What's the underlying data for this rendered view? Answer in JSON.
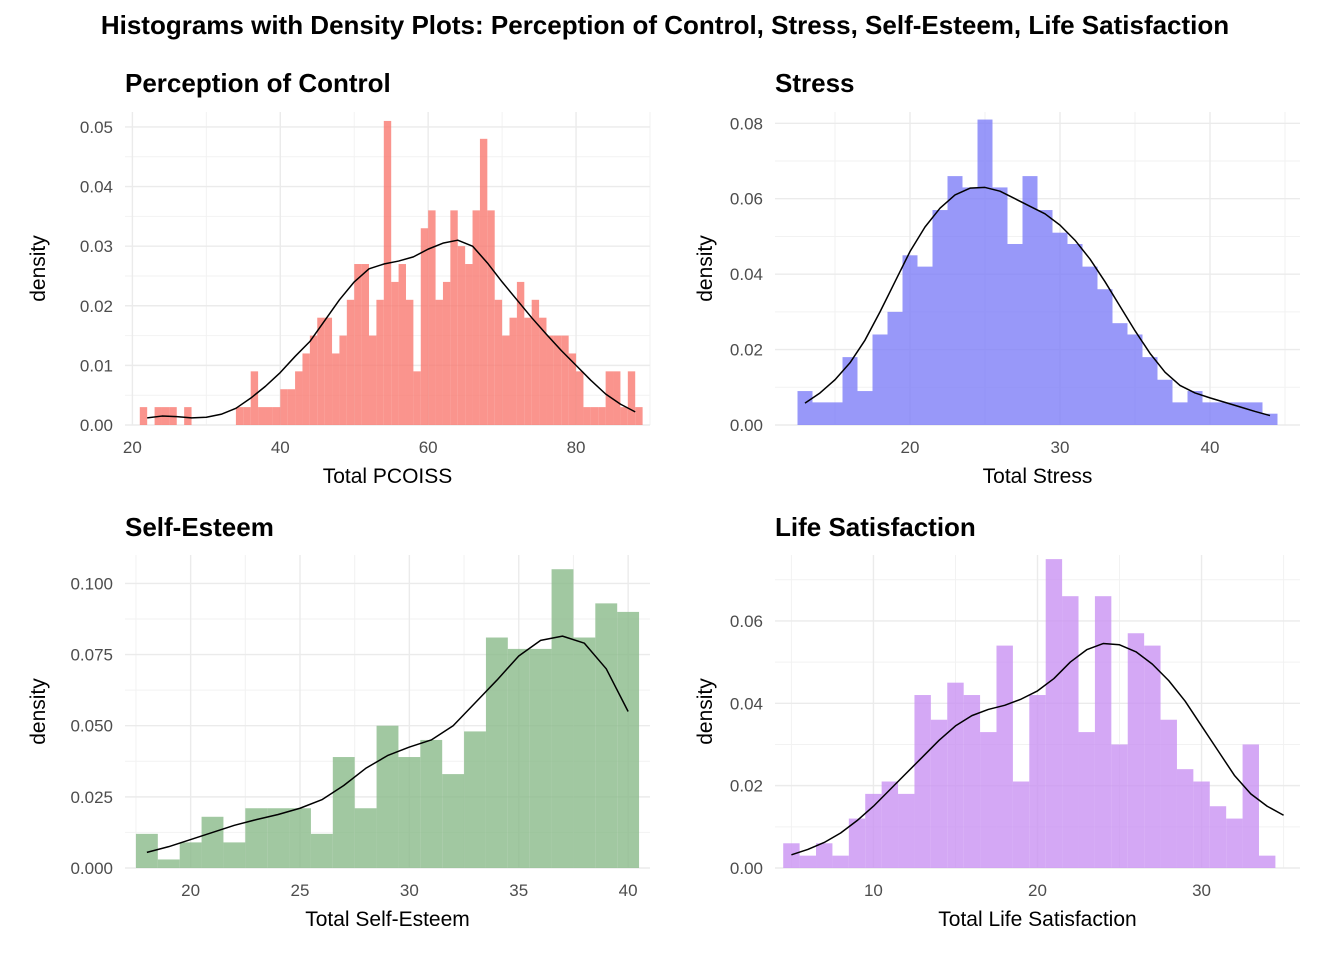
{
  "title": "Histograms with Density Plots: Perception of Control, Stress, Self-Esteem, Life Satisfaction",
  "chart_data": [
    {
      "type": "bar",
      "title": "Perception of Control",
      "xlabel": "Total PCOISS",
      "ylabel": "density",
      "color": "#F8766D",
      "xlim": [
        19,
        90
      ],
      "ylim": [
        0,
        0.0525
      ],
      "xticks": [
        20,
        40,
        60,
        80
      ],
      "yticks": [
        0.0,
        0.01,
        0.02,
        0.03,
        0.04,
        0.05
      ],
      "ytick_labels": [
        "0.00",
        "0.01",
        "0.02",
        "0.03",
        "0.04",
        "0.05"
      ],
      "bin_start": 21,
      "bin_width": 1,
      "values": [
        0.003,
        0,
        0.003,
        0.003,
        0.003,
        0,
        0.003,
        0,
        0,
        0,
        0,
        0,
        0,
        0.003,
        0.003,
        0.009,
        0.003,
        0.003,
        0.003,
        0.006,
        0.006,
        0.009,
        0.012,
        0.015,
        0.018,
        0.018,
        0.012,
        0.015,
        0.021,
        0.027,
        0.027,
        0.015,
        0.021,
        0.051,
        0.024,
        0.027,
        0.021,
        0.009,
        0.033,
        0.036,
        0.021,
        0.024,
        0.036,
        0.03,
        0.027,
        0.036,
        0.048,
        0.036,
        0.021,
        0.015,
        0.018,
        0.024,
        0.018,
        0.021,
        0.018,
        0.015,
        0.015,
        0.015,
        0.012,
        0.009,
        0.003,
        0.003,
        0.003,
        0.009,
        0.009,
        0.003,
        0.009,
        0.003
      ],
      "density_x": [
        22,
        24,
        26,
        28,
        30,
        32,
        34,
        36,
        38,
        40,
        42,
        44,
        46,
        48,
        50,
        52,
        54,
        56,
        58,
        60,
        62,
        64,
        66,
        68,
        70,
        72,
        74,
        76,
        78,
        80,
        82,
        84,
        86,
        88
      ],
      "density_y": [
        0.0012,
        0.0015,
        0.0014,
        0.0012,
        0.0013,
        0.0018,
        0.0028,
        0.0045,
        0.0065,
        0.0088,
        0.0115,
        0.014,
        0.0175,
        0.021,
        0.024,
        0.0262,
        0.027,
        0.0275,
        0.0282,
        0.0295,
        0.0305,
        0.031,
        0.03,
        0.0272,
        0.024,
        0.021,
        0.018,
        0.0152,
        0.0125,
        0.01,
        0.0075,
        0.0052,
        0.0035,
        0.0022
      ]
    },
    {
      "type": "bar",
      "title": "Stress",
      "xlabel": "Total Stress",
      "ylabel": "density",
      "color": "#7B7BF7",
      "xlim": [
        11,
        46
      ],
      "ylim": [
        0,
        0.083
      ],
      "xticks": [
        20,
        30,
        40
      ],
      "yticks": [
        0.0,
        0.02,
        0.04,
        0.06,
        0.08
      ],
      "ytick_labels": [
        "0.00",
        "0.02",
        "0.04",
        "0.06",
        "0.08"
      ],
      "bin_start": 12.5,
      "bin_width": 1,
      "values": [
        0.009,
        0.006,
        0.006,
        0.018,
        0.009,
        0.024,
        0.03,
        0.045,
        0.042,
        0.057,
        0.066,
        0.063,
        0.081,
        0.063,
        0.048,
        0.066,
        0.057,
        0.051,
        0.048,
        0.042,
        0.036,
        0.027,
        0.024,
        0.018,
        0.012,
        0.006,
        0.009,
        0.006,
        0.006,
        0.006,
        0.006,
        0.003
      ],
      "density_x": [
        13,
        14,
        15,
        16,
        17,
        18,
        19,
        20,
        21,
        22,
        23,
        24,
        25,
        26,
        27,
        28,
        29,
        30,
        31,
        32,
        33,
        34,
        35,
        36,
        37,
        38,
        39,
        40,
        41,
        42,
        43,
        44
      ],
      "density_y": [
        0.0058,
        0.0085,
        0.012,
        0.0165,
        0.0225,
        0.03,
        0.038,
        0.046,
        0.0525,
        0.0575,
        0.061,
        0.0628,
        0.063,
        0.062,
        0.06,
        0.058,
        0.056,
        0.053,
        0.049,
        0.044,
        0.038,
        0.0315,
        0.025,
        0.019,
        0.014,
        0.0105,
        0.0085,
        0.0072,
        0.006,
        0.0048,
        0.0036,
        0.0025
      ]
    },
    {
      "type": "bar",
      "title": "Self-Esteem",
      "xlabel": "Total Self-Esteem",
      "ylabel": "density",
      "color": "#86B886",
      "xlim": [
        17,
        41
      ],
      "ylim": [
        0,
        0.11
      ],
      "xticks": [
        20,
        25,
        30,
        35,
        40
      ],
      "yticks": [
        0.0,
        0.025,
        0.05,
        0.075,
        0.1
      ],
      "ytick_labels": [
        "0.000",
        "0.025",
        "0.050",
        "0.075",
        "0.100"
      ],
      "bin_start": 17.5,
      "bin_width": 1,
      "values": [
        0.012,
        0.003,
        0.009,
        0.018,
        0.009,
        0.021,
        0.021,
        0.021,
        0.012,
        0.039,
        0.021,
        0.05,
        0.039,
        0.045,
        0.033,
        0.048,
        0.081,
        0.077,
        0.077,
        0.105,
        0.081,
        0.093,
        0.09
      ],
      "density_x": [
        18,
        19,
        20,
        21,
        22,
        23,
        24,
        25,
        26,
        27,
        28,
        29,
        30,
        31,
        32,
        33,
        34,
        35,
        36,
        37,
        38,
        39,
        40
      ],
      "density_y": [
        0.0055,
        0.0075,
        0.01,
        0.0125,
        0.015,
        0.017,
        0.0188,
        0.021,
        0.024,
        0.029,
        0.035,
        0.0395,
        0.0425,
        0.045,
        0.05,
        0.058,
        0.066,
        0.0745,
        0.08,
        0.0815,
        0.079,
        0.07,
        0.055
      ]
    },
    {
      "type": "bar",
      "title": "Life Satisfaction",
      "xlabel": "Total Life Satisfaction",
      "ylabel": "density",
      "color": "#C88FF2",
      "xlim": [
        4,
        36
      ],
      "ylim": [
        0,
        0.076
      ],
      "xticks": [
        10,
        20,
        30
      ],
      "yticks": [
        0.0,
        0.02,
        0.04,
        0.06
      ],
      "ytick_labels": [
        "0.00",
        "0.02",
        "0.04",
        "0.06"
      ],
      "bin_start": 4.5,
      "bin_width": 1,
      "values": [
        0.006,
        0.003,
        0.006,
        0.003,
        0.012,
        0.018,
        0.021,
        0.018,
        0.042,
        0.036,
        0.045,
        0.042,
        0.033,
        0.054,
        0.021,
        0.042,
        0.075,
        0.066,
        0.033,
        0.066,
        0.03,
        0.057,
        0.054,
        0.036,
        0.024,
        0.021,
        0.015,
        0.012,
        0.03,
        0.003
      ],
      "density_x": [
        5,
        6,
        7,
        8,
        9,
        10,
        11,
        12,
        13,
        14,
        15,
        16,
        17,
        18,
        19,
        20,
        21,
        22,
        23,
        24,
        25,
        26,
        27,
        28,
        29,
        30,
        31,
        32,
        33,
        34,
        35
      ],
      "density_y": [
        0.0032,
        0.0045,
        0.0062,
        0.0085,
        0.0115,
        0.015,
        0.019,
        0.023,
        0.027,
        0.031,
        0.0345,
        0.037,
        0.0385,
        0.0395,
        0.041,
        0.043,
        0.046,
        0.05,
        0.053,
        0.0545,
        0.0542,
        0.0525,
        0.0495,
        0.0455,
        0.0405,
        0.0345,
        0.0285,
        0.0225,
        0.018,
        0.015,
        0.0128
      ]
    }
  ]
}
